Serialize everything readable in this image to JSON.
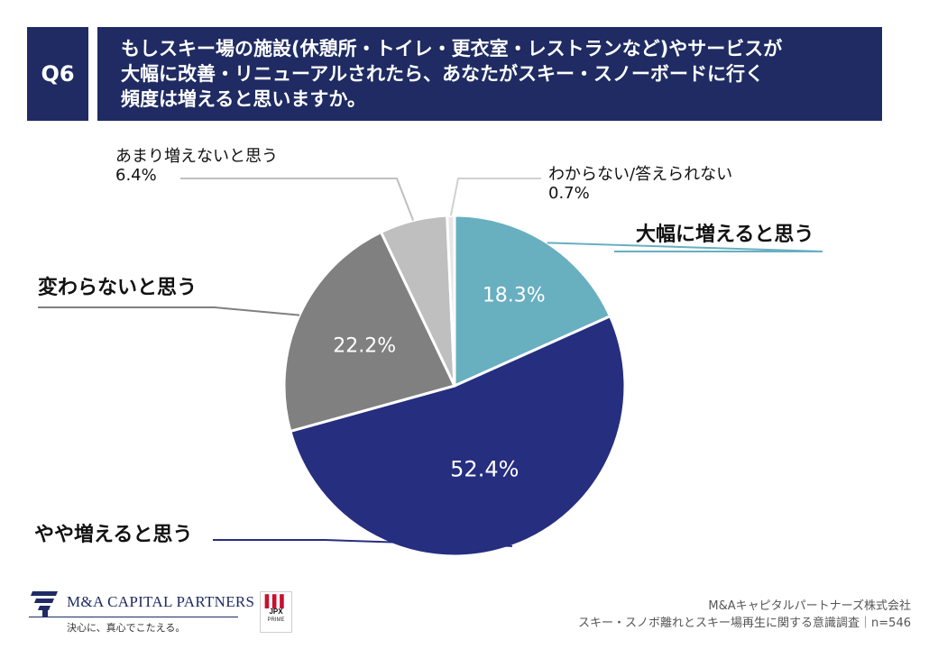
{
  "question": {
    "number": "Q6",
    "lines": [
      "もしスキー場の施設(休憩所・トイレ・更衣室・レストランなど)やサービスが",
      "大幅に改善・リニューアルされたら、あなたがスキー・スノーボードに行く",
      "頻度は増えると思いますか。"
    ]
  },
  "chart_data": {
    "type": "pie",
    "title": "もしスキー場の施設(休憩所・トイレ・更衣室・レストランなど)やサービスが大幅に改善・リニューアルされたら、あなたがスキー・スノーボードに行く頻度は増えると思いますか。",
    "slices": [
      {
        "label": "大幅に増えると思う",
        "value": 18.3,
        "value_label": "18.3%",
        "color": "#68afc0"
      },
      {
        "label": "やや増えると思う",
        "value": 52.4,
        "value_label": "52.4%",
        "color": "#262e80"
      },
      {
        "label": "変わらないと思う",
        "value": 22.2,
        "value_label": "22.2%",
        "color": "#808080"
      },
      {
        "label": "あまり増えないと思う",
        "value": 6.4,
        "value_label": "6.4%",
        "color": "#bfbfbf"
      },
      {
        "label": "わからない/答えられない",
        "value": 0.7,
        "value_label": "0.7%",
        "color": "#e6e6e6"
      }
    ],
    "start": "12 o'clock, clockwise"
  },
  "footer": {
    "logo_name": "M&A CAPITAL PARTNERS",
    "logo_tagline": "決心に、真心でこたえる。",
    "jpx_line1": "JPX",
    "jpx_line2": "PRIME",
    "company": "M&Aキャピタルパートナーズ株式会社",
    "survey": "スキー・スノボ離れとスキー場再生に関する意識調査｜n=546"
  }
}
